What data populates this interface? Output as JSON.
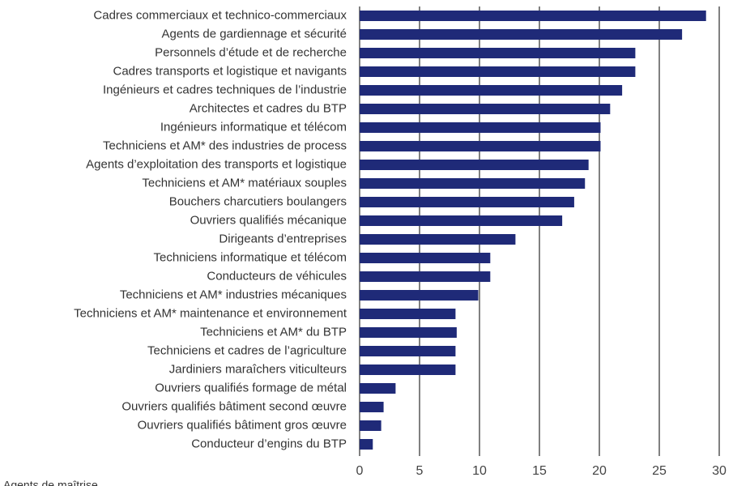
{
  "chart_data": {
    "type": "barh",
    "categories": [
      "Cadres commerciaux et technico-commerciaux",
      "Agents de gardiennage et sécurité",
      "Personnels d’étude et de recherche",
      "Cadres transports et logistique et navigants",
      "Ingénieurs et cadres techniques de l’industrie",
      "Architectes et cadres du BTP",
      "Ingénieurs informatique et télécom",
      "Techniciens et AM* des industries de process",
      "Agents d’exploitation des transports et logistique",
      "Techniciens et AM* matériaux souples",
      "Bouchers charcutiers boulangers",
      "Ouvriers qualifiés mécanique",
      "Dirigeants d’entreprises",
      "Techniciens informatique et télécom",
      "Conducteurs de véhicules",
      "Techniciens et AM* industries mécaniques",
      "Techniciens et AM* maintenance et environnement",
      "Techniciens et AM* du BTP",
      "Techniciens et cadres de l’agriculture",
      "Jardiniers maraîchers viticulteurs",
      "Ouvriers qualifiés formage de métal",
      "Ouvriers qualifiés bâtiment second œuvre",
      "Ouvriers qualifiés bâtiment gros œuvre",
      "Conducteur d’engins du BTP"
    ],
    "values": [
      28.9,
      26.9,
      23.0,
      23.0,
      21.9,
      20.9,
      20.1,
      20.1,
      19.1,
      18.8,
      17.9,
      16.9,
      13.0,
      10.9,
      10.9,
      9.9,
      8.0,
      8.1,
      8.0,
      8.0,
      3.0,
      2.0,
      1.8,
      1.1
    ],
    "color": "#1f2a78",
    "xlim": [
      0,
      30
    ],
    "xticks": [
      0,
      5,
      10,
      15,
      20,
      25,
      30
    ],
    "grid": true,
    "footnote": "Agents de maîtrise"
  }
}
